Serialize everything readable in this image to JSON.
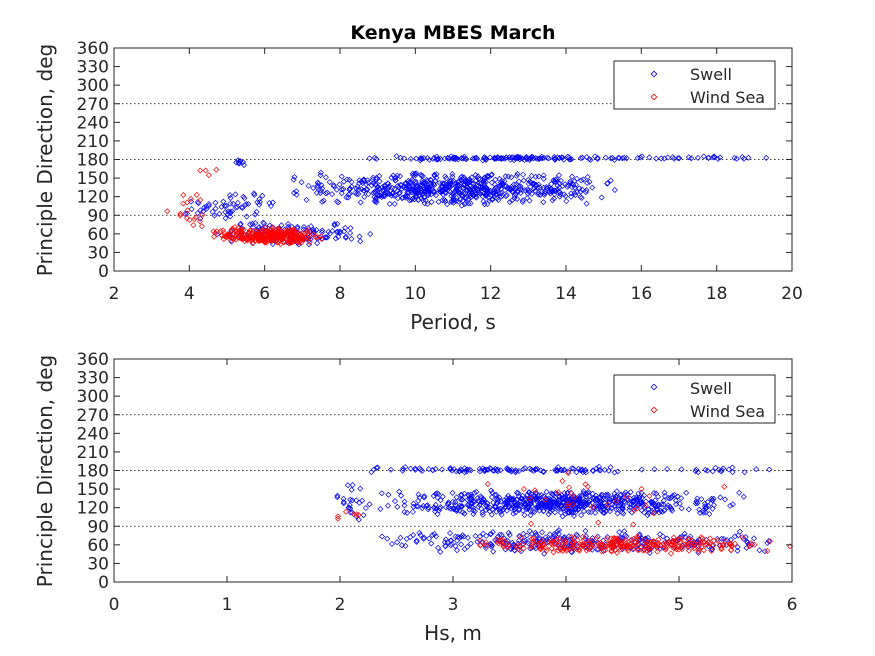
{
  "title": "Kenya MBES March",
  "colors": {
    "swell": "#0000ff",
    "wind_sea": "#ff0000"
  },
  "chart_data": [
    {
      "type": "scatter",
      "xlabel": "Period, s",
      "ylabel": "Principle Direction, deg",
      "xlim": [
        2,
        20
      ],
      "ylim": [
        0,
        360
      ],
      "xticks": [
        "2",
        "4",
        "6",
        "8",
        "10",
        "12",
        "14",
        "16",
        "18",
        "20"
      ],
      "yticks": [
        "0",
        "30",
        "60",
        "90",
        "120",
        "150",
        "180",
        "210",
        "240",
        "270",
        "300",
        "330",
        "360"
      ],
      "reference_lines": [
        90,
        180,
        270
      ],
      "legend": {
        "position": "top-right",
        "entries": [
          "Swell",
          "Wind Sea"
        ]
      },
      "series": [
        {
          "name": "Swell",
          "color": "#0000ff",
          "clusters": [
            {
              "x": [
                6.5,
                15.5
              ],
              "y": [
                105,
                160
              ],
              "n": 650
            },
            {
              "x": [
                8.5,
                16.0
              ],
              "y": [
                178,
                186
              ],
              "n": 140
            },
            {
              "x": [
                15.0,
                19.7
              ],
              "y": [
                180,
                186
              ],
              "n": 30
            },
            {
              "x": [
                4.5,
                9.0
              ],
              "y": [
                40,
                80
              ],
              "n": 130
            },
            {
              "x": [
                3.8,
                6.5
              ],
              "y": [
                80,
                130
              ],
              "n": 60
            },
            {
              "x": [
                5.1,
                5.5
              ],
              "y": [
                170,
                180
              ],
              "n": 8
            }
          ]
        },
        {
          "name": "Wind Sea",
          "color": "#ff0000",
          "clusters": [
            {
              "x": [
                4.6,
                7.6
              ],
              "y": [
                42,
                72
              ],
              "n": 280
            },
            {
              "x": [
                3.3,
                4.6
              ],
              "y": [
                60,
                130
              ],
              "n": 18
            },
            {
              "x": [
                4.2,
                4.8
              ],
              "y": [
                150,
                165
              ],
              "n": 4
            }
          ]
        }
      ]
    },
    {
      "type": "scatter",
      "xlabel": "Hs, m",
      "ylabel": "Principle Direction, deg",
      "xlim": [
        0,
        6
      ],
      "ylim": [
        0,
        360
      ],
      "xticks": [
        "0",
        "1",
        "2",
        "3",
        "4",
        "5",
        "6"
      ],
      "yticks": [
        "0",
        "30",
        "60",
        "90",
        "120",
        "150",
        "180",
        "210",
        "240",
        "270",
        "300",
        "330",
        "360"
      ],
      "reference_lines": [
        90,
        180,
        270
      ],
      "legend": {
        "position": "top-right",
        "entries": [
          "Swell",
          "Wind Sea"
        ]
      },
      "series": [
        {
          "name": "Swell",
          "color": "#0000ff",
          "clusters": [
            {
              "x": [
                2.3,
                5.6
              ],
              "y": [
                105,
                150
              ],
              "n": 650
            },
            {
              "x": [
                2.1,
                4.7
              ],
              "y": [
                176,
                186
              ],
              "n": 110
            },
            {
              "x": [
                4.7,
                6.0
              ],
              "y": [
                176,
                186
              ],
              "n": 20
            },
            {
              "x": [
                2.2,
                6.0
              ],
              "y": [
                45,
                85
              ],
              "n": 300
            },
            {
              "x": [
                1.9,
                2.3
              ],
              "y": [
                95,
                170
              ],
              "n": 25
            }
          ]
        },
        {
          "name": "Wind Sea",
          "color": "#ff0000",
          "clusters": [
            {
              "x": [
                3.1,
                6.0
              ],
              "y": [
                45,
                75
              ],
              "n": 280
            },
            {
              "x": [
                3.0,
                5.5
              ],
              "y": [
                75,
                185
              ],
              "n": 30
            },
            {
              "x": [
                1.9,
                2.3
              ],
              "y": [
                95,
                120
              ],
              "n": 6
            }
          ]
        }
      ]
    }
  ]
}
